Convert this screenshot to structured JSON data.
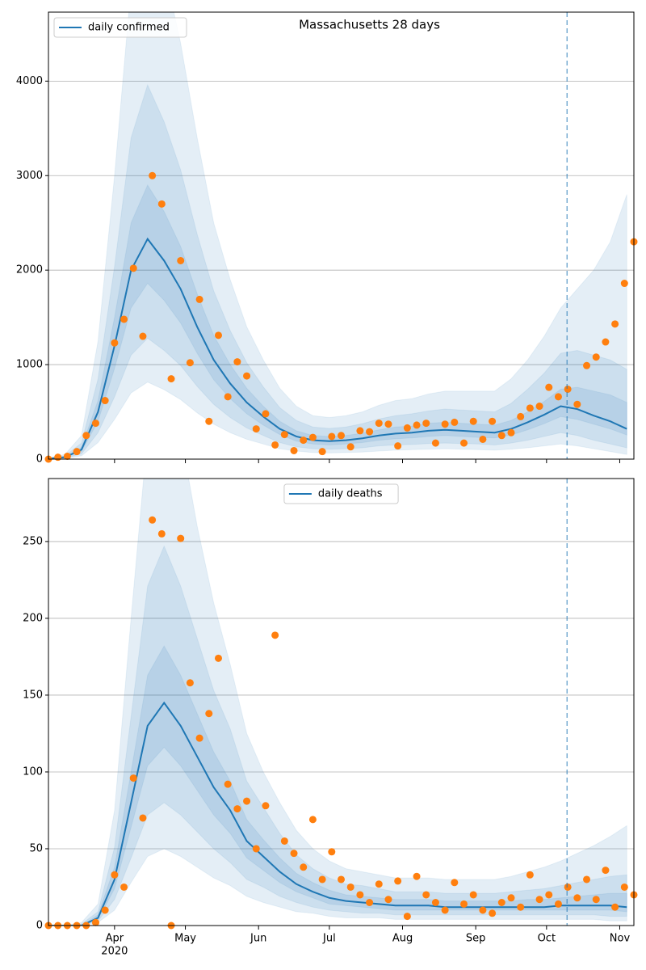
{
  "chart_data": [
    {
      "type": "line",
      "title": "Massachusetts 28 days",
      "legend": "upper left",
      "grid": true,
      "xlim": [
        3,
        251
      ],
      "ylim": [
        0,
        4730
      ],
      "yticks": [
        0,
        1000,
        2000,
        3000,
        4000
      ],
      "vline": 222.7,
      "vline_color": "#1f77b4",
      "series": [
        {
          "name": "daily confirmed",
          "color": "#1f77b4",
          "x": [
            3,
            10,
            17,
            24,
            31,
            38,
            45,
            52,
            59,
            66,
            73,
            80,
            87,
            94,
            101,
            108,
            115,
            122,
            129,
            136,
            143,
            150,
            157,
            164,
            171,
            178,
            185,
            192,
            199,
            206,
            213,
            220,
            227,
            234,
            241,
            248
          ],
          "values": [
            5,
            20,
            100,
            500,
            1200,
            2000,
            2330,
            2100,
            1800,
            1400,
            1050,
            800,
            600,
            450,
            320,
            240,
            200,
            190,
            200,
            220,
            250,
            270,
            280,
            300,
            310,
            300,
            290,
            280,
            320,
            390,
            470,
            560,
            530,
            460,
            400,
            320
          ],
          "bands": [
            {
              "lower": [
                2,
                7,
                35,
                175,
                420,
                700,
                815,
                735,
                630,
                490,
                370,
                280,
                210,
                160,
                110,
                85,
                70,
                65,
                70,
                75,
                85,
                95,
                100,
                105,
                110,
                105,
                100,
                95,
                105,
                120,
                140,
                160,
                140,
                110,
                80,
                50
              ],
              "upper": [
                12,
                50,
                250,
                1250,
                3000,
                5000,
                5800,
                5200,
                4400,
                3400,
                2500,
                1900,
                1400,
                1050,
                750,
                560,
                460,
                440,
                460,
                500,
                570,
                620,
                640,
                690,
                720,
                720,
                720,
                720,
                850,
                1050,
                1300,
                1600,
                1800,
                2000,
                2300,
                2800
              ]
            },
            {
              "lower": [
                3,
                11,
                55,
                280,
                660,
                1100,
                1280,
                1150,
                990,
                770,
                580,
                440,
                330,
                250,
                175,
                130,
                110,
                105,
                110,
                120,
                140,
                150,
                155,
                165,
                170,
                165,
                160,
                150,
                170,
                200,
                240,
                280,
                250,
                200,
                160,
                120
              ],
              "upper": [
                8,
                34,
                170,
                850,
                2040,
                3400,
                3960,
                3570,
                3060,
                2380,
                1780,
                1360,
                1020,
                765,
                545,
                410,
                340,
                325,
                340,
                375,
                425,
                460,
                480,
                510,
                530,
                520,
                510,
                500,
                590,
                740,
                910,
                1120,
                1150,
                1100,
                1050,
                950
              ]
            },
            {
              "lower": [
                4,
                16,
                80,
                400,
                960,
                1600,
                1860,
                1680,
                1440,
                1120,
                840,
                640,
                480,
                360,
                260,
                190,
                160,
                150,
                160,
                175,
                200,
                215,
                225,
                240,
                250,
                240,
                230,
                225,
                255,
                310,
                375,
                450,
                420,
                370,
                320,
                255
              ],
              "upper": [
                6,
                25,
                125,
                620,
                1500,
                2500,
                2900,
                2620,
                2250,
                1750,
                1310,
                1000,
                750,
                560,
                400,
                300,
                250,
                240,
                250,
                275,
                310,
                340,
                350,
                380,
                390,
                380,
                370,
                360,
                410,
                500,
                610,
                740,
                760,
                720,
                680,
                600
              ]
            }
          ]
        }
      ],
      "scatter": {
        "color": "#ff7f0e",
        "x": [
          3,
          7,
          11,
          15,
          19,
          23,
          27,
          31,
          35,
          39,
          43,
          47,
          51,
          55,
          59,
          63,
          67,
          71,
          75,
          79,
          83,
          87,
          91,
          95,
          99,
          103,
          107,
          111,
          115,
          119,
          123,
          127,
          131,
          135,
          139,
          143,
          147,
          151,
          155,
          159,
          163,
          167,
          171,
          175,
          179,
          183,
          187,
          191,
          195,
          199,
          203,
          207,
          211,
          215,
          219,
          223,
          227,
          231,
          235,
          239,
          243,
          247,
          251
        ],
        "values": [
          0,
          20,
          30,
          80,
          250,
          380,
          620,
          1230,
          1480,
          2020,
          1300,
          3000,
          2700,
          850,
          2100,
          1020,
          1690,
          400,
          1310,
          660,
          1030,
          880,
          320,
          480,
          150,
          260,
          90,
          200,
          230,
          80,
          240,
          250,
          130,
          300,
          290,
          380,
          370,
          140,
          330,
          360,
          380,
          170,
          370,
          390,
          170,
          400,
          210,
          400,
          250,
          280,
          450,
          540,
          560,
          760,
          660,
          740,
          580,
          990,
          1080,
          1240,
          1430,
          1860,
          2300
        ]
      }
    },
    {
      "type": "line",
      "legend": "upper center",
      "grid": true,
      "xlim": [
        3,
        251
      ],
      "ylim": [
        0,
        291
      ],
      "yticks": [
        0,
        50,
        100,
        150,
        200,
        250
      ],
      "vline": 222.7,
      "vline_color": "#1f77b4",
      "xticks": [
        {
          "value": 31,
          "label": "Apr"
        },
        {
          "value": 61,
          "label": "May"
        },
        {
          "value": 92,
          "label": "Jun"
        },
        {
          "value": 122,
          "label": "Jul"
        },
        {
          "value": 153,
          "label": "Aug"
        },
        {
          "value": 184,
          "label": "Sep"
        },
        {
          "value": 214,
          "label": "Oct"
        },
        {
          "value": 245,
          "label": "Nov"
        }
      ],
      "year_label": "2020",
      "series": [
        {
          "name": "daily deaths",
          "color": "#1f77b4",
          "x": [
            3,
            10,
            17,
            24,
            31,
            38,
            45,
            52,
            59,
            66,
            73,
            80,
            87,
            94,
            101,
            108,
            115,
            122,
            129,
            136,
            143,
            150,
            157,
            164,
            171,
            178,
            185,
            192,
            199,
            206,
            213,
            220,
            227,
            234,
            241,
            248
          ],
          "values": [
            0,
            0,
            0,
            5,
            30,
            80,
            130,
            145,
            130,
            110,
            90,
            75,
            55,
            45,
            35,
            27,
            22,
            18,
            16,
            15,
            14,
            13,
            13,
            13,
            12,
            12,
            12,
            12,
            12,
            12,
            12,
            13,
            13,
            13,
            13,
            12
          ],
          "bands": [
            {
              "lower": [
                0,
                0,
                0,
                2,
                10,
                28,
                45,
                50,
                45,
                38,
                31,
                26,
                19,
                15,
                12,
                9,
                8,
                6,
                5,
                5,
                5,
                4,
                4,
                4,
                4,
                4,
                4,
                4,
                4,
                4,
                4,
                4,
                4,
                4,
                3,
                3
              ],
              "upper": [
                0,
                0,
                2,
                14,
                75,
                200,
                320,
                360,
                320,
                260,
                210,
                170,
                125,
                100,
                80,
                62,
                50,
                42,
                37,
                35,
                33,
                31,
                31,
                31,
                30,
                30,
                30,
                30,
                32,
                35,
                38,
                42,
                47,
                52,
                58,
                65
              ]
            },
            {
              "lower": [
                0,
                0,
                0,
                3,
                17,
                44,
                72,
                80,
                72,
                61,
                50,
                41,
                30,
                25,
                19,
                15,
                12,
                10,
                9,
                8,
                8,
                7,
                7,
                7,
                7,
                7,
                7,
                7,
                7,
                7,
                7,
                7,
                7,
                7,
                6,
                6
              ],
              "upper": [
                0,
                0,
                1,
                9,
                51,
                136,
                221,
                247,
                221,
                187,
                153,
                128,
                94,
                77,
                60,
                46,
                37,
                31,
                27,
                26,
                24,
                22,
                22,
                22,
                21,
                21,
                21,
                21,
                22,
                23,
                24,
                26,
                28,
                30,
                32,
                33
              ]
            },
            {
              "lower": [
                0,
                0,
                0,
                4,
                24,
                64,
                104,
                116,
                104,
                88,
                72,
                60,
                44,
                36,
                28,
                22,
                18,
                14,
                13,
                12,
                11,
                10,
                10,
                10,
                10,
                10,
                10,
                10,
                10,
                10,
                10,
                10,
                10,
                10,
                10,
                9
              ],
              "upper": [
                0,
                0,
                0,
                7,
                38,
                100,
                163,
                182,
                163,
                138,
                113,
                94,
                69,
                56,
                44,
                34,
                28,
                23,
                20,
                19,
                18,
                17,
                17,
                17,
                16,
                16,
                16,
                16,
                16,
                17,
                17,
                18,
                19,
                20,
                21,
                21
              ]
            }
          ]
        }
      ],
      "scatter": {
        "color": "#ff7f0e",
        "x": [
          3,
          7,
          11,
          15,
          19,
          23,
          27,
          31,
          35,
          39,
          43,
          47,
          51,
          55,
          59,
          63,
          67,
          71,
          75,
          79,
          83,
          87,
          91,
          95,
          99,
          103,
          107,
          111,
          115,
          119,
          123,
          127,
          131,
          135,
          139,
          143,
          147,
          151,
          155,
          159,
          163,
          167,
          171,
          175,
          179,
          183,
          187,
          191,
          195,
          199,
          203,
          207,
          211,
          215,
          219,
          223,
          227,
          231,
          235,
          239,
          243,
          247,
          251
        ],
        "values": [
          0,
          0,
          0,
          0,
          0,
          2,
          10,
          33,
          25,
          96,
          70,
          264,
          255,
          0,
          252,
          158,
          122,
          138,
          174,
          92,
          76,
          81,
          50,
          78,
          189,
          55,
          47,
          38,
          69,
          30,
          48,
          30,
          25,
          20,
          15,
          27,
          17,
          29,
          6,
          32,
          20,
          15,
          10,
          28,
          14,
          20,
          10,
          8,
          15,
          18,
          12,
          33,
          17,
          20,
          14,
          25,
          18,
          30,
          17,
          36,
          12,
          25,
          20
        ]
      }
    }
  ]
}
